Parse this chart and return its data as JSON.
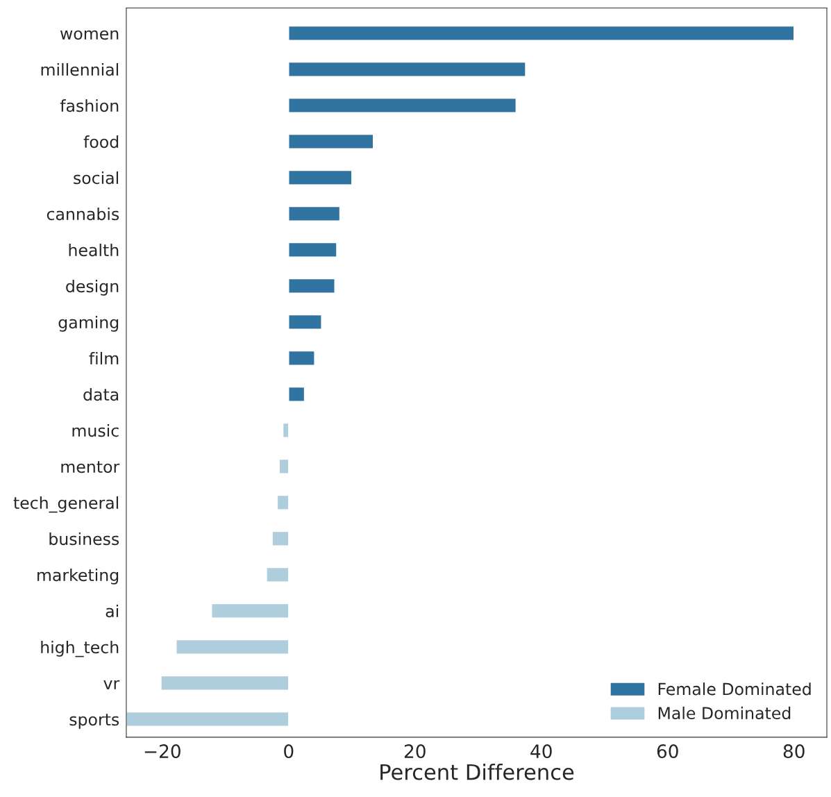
{
  "chart_data": {
    "type": "bar",
    "orientation": "horizontal",
    "xlabel": "Percent Difference",
    "categories": [
      "women",
      "millennial",
      "fashion",
      "food",
      "social",
      "cannabis",
      "health",
      "design",
      "gaming",
      "film",
      "data",
      "music",
      "mentor",
      "tech_general",
      "business",
      "marketing",
      "ai",
      "high_tech",
      "vr",
      "sports"
    ],
    "series": [
      {
        "name": "Female Dominated",
        "color": "#3274a1",
        "values": [
          80,
          37.5,
          36,
          13.4,
          10,
          8.1,
          7.6,
          7.3,
          5.2,
          4.1,
          2.5,
          null,
          null,
          null,
          null,
          null,
          null,
          null,
          null,
          null
        ]
      },
      {
        "name": "Male Dominated",
        "color": "#aecddd",
        "values": [
          null,
          null,
          null,
          null,
          null,
          null,
          null,
          null,
          null,
          null,
          null,
          -0.9,
          -1.5,
          -1.8,
          -2.6,
          -3.5,
          -12.2,
          -17.8,
          -20.2,
          -25.7
        ]
      }
    ],
    "xlim": [
      -25.7,
      85.2
    ],
    "xticks": [
      {
        "value": -20,
        "label": "−20"
      },
      0,
      20,
      40,
      60,
      80
    ],
    "grid": false,
    "legend": "bottom right"
  }
}
